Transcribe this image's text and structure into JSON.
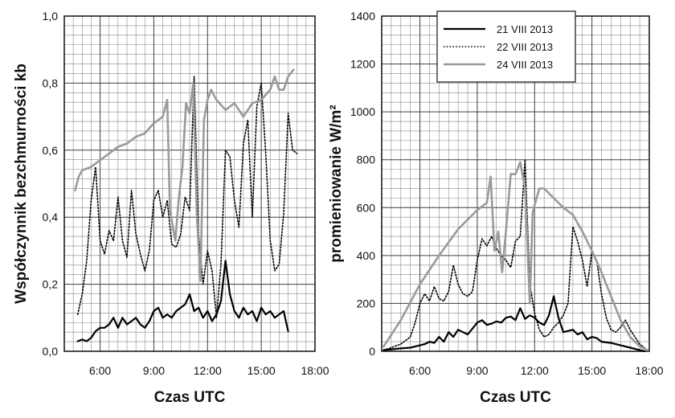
{
  "chart_data": [
    {
      "type": "line",
      "xlabel": "Czas UTC",
      "ylabel": "Współczynnik bezchmurności kb",
      "xlim": [
        4.0,
        18.0
      ],
      "ylim": [
        0.0,
        1.0
      ],
      "x_ticks": [
        6,
        9,
        12,
        15,
        18
      ],
      "x_tick_labels": [
        "6:00",
        "9:00",
        "12:00",
        "15:00",
        "18:00"
      ],
      "y_ticks": [
        0.0,
        0.2,
        0.4,
        0.6,
        0.8,
        1.0
      ],
      "y_tick_labels": [
        "0,0",
        "0,2",
        "0,4",
        "0,6",
        "0,8",
        "1,0"
      ],
      "grid": true,
      "series": [
        {
          "name": "21 VIII 2013",
          "color": "#000000",
          "style": "solid",
          "x": [
            4.75,
            5.0,
            5.25,
            5.5,
            5.75,
            6.0,
            6.25,
            6.5,
            6.75,
            7.0,
            7.25,
            7.5,
            7.75,
            8.0,
            8.25,
            8.5,
            8.75,
            9.0,
            9.25,
            9.5,
            9.75,
            10.0,
            10.25,
            10.5,
            10.75,
            11.0,
            11.25,
            11.5,
            11.75,
            12.0,
            12.25,
            12.5,
            12.75,
            13.0,
            13.25,
            13.5,
            13.75,
            14.0,
            14.25,
            14.5,
            14.75,
            15.0,
            15.25,
            15.5,
            15.75,
            16.0,
            16.25,
            16.5
          ],
          "values": [
            0.03,
            0.035,
            0.03,
            0.04,
            0.06,
            0.07,
            0.07,
            0.08,
            0.1,
            0.07,
            0.1,
            0.08,
            0.09,
            0.1,
            0.08,
            0.07,
            0.09,
            0.12,
            0.13,
            0.1,
            0.11,
            0.1,
            0.12,
            0.13,
            0.14,
            0.17,
            0.12,
            0.13,
            0.1,
            0.12,
            0.09,
            0.11,
            0.15,
            0.27,
            0.17,
            0.12,
            0.1,
            0.13,
            0.11,
            0.12,
            0.09,
            0.13,
            0.11,
            0.12,
            0.1,
            0.11,
            0.12,
            0.06
          ]
        },
        {
          "name": "22 VIII 2013",
          "color": "#000000",
          "style": "dotted",
          "x": [
            4.75,
            5.0,
            5.25,
            5.5,
            5.75,
            6.0,
            6.25,
            6.5,
            6.75,
            7.0,
            7.25,
            7.5,
            7.75,
            8.0,
            8.25,
            8.5,
            8.75,
            9.0,
            9.25,
            9.5,
            9.75,
            10.0,
            10.25,
            10.5,
            10.75,
            11.0,
            11.25,
            11.5,
            11.75,
            12.0,
            12.25,
            12.5,
            12.75,
            13.0,
            13.25,
            13.5,
            13.75,
            14.0,
            14.25,
            14.5,
            14.75,
            15.0,
            15.25,
            15.5,
            15.75,
            16.0,
            16.25,
            16.5,
            16.75,
            17.0
          ],
          "values": [
            0.11,
            0.17,
            0.27,
            0.45,
            0.55,
            0.33,
            0.29,
            0.36,
            0.33,
            0.46,
            0.33,
            0.28,
            0.48,
            0.35,
            0.29,
            0.24,
            0.3,
            0.45,
            0.48,
            0.4,
            0.45,
            0.32,
            0.31,
            0.35,
            0.46,
            0.42,
            0.82,
            0.35,
            0.2,
            0.3,
            0.24,
            0.1,
            0.26,
            0.6,
            0.58,
            0.45,
            0.37,
            0.62,
            0.69,
            0.4,
            0.73,
            0.8,
            0.59,
            0.33,
            0.24,
            0.26,
            0.41,
            0.71,
            0.6,
            0.59
          ]
        },
        {
          "name": "24 VIII 2013",
          "color": "#9a9a9a",
          "style": "solid",
          "x": [
            4.6,
            4.8,
            5.0,
            5.5,
            6.0,
            6.5,
            7.0,
            7.5,
            8.0,
            8.5,
            9.0,
            9.5,
            9.75,
            9.9,
            10.2,
            10.4,
            10.6,
            10.8,
            11.0,
            11.2,
            11.4,
            11.6,
            11.8,
            12.0,
            12.2,
            12.5,
            13.0,
            13.5,
            14.0,
            14.5,
            15.0,
            15.5,
            15.75,
            16.0,
            16.25,
            16.5,
            16.8
          ],
          "values": [
            0.48,
            0.52,
            0.54,
            0.55,
            0.57,
            0.59,
            0.61,
            0.62,
            0.64,
            0.65,
            0.68,
            0.7,
            0.75,
            0.42,
            0.33,
            0.46,
            0.55,
            0.74,
            0.71,
            0.8,
            0.41,
            0.21,
            0.69,
            0.75,
            0.78,
            0.75,
            0.72,
            0.74,
            0.7,
            0.74,
            0.75,
            0.78,
            0.82,
            0.78,
            0.78,
            0.82,
            0.84
          ]
        }
      ]
    },
    {
      "type": "line",
      "xlabel": "Czas UTC",
      "ylabel": "promieniowanie W/m²",
      "xlim": [
        4.0,
        18.0
      ],
      "ylim": [
        0,
        1400
      ],
      "x_ticks": [
        6,
        9,
        12,
        15,
        18
      ],
      "x_tick_labels": [
        "6:00",
        "9:00",
        "12:00",
        "15:00",
        "18:00"
      ],
      "y_ticks": [
        0,
        200,
        400,
        600,
        800,
        1000,
        1200,
        1400
      ],
      "y_tick_labels": [
        "0",
        "200",
        "400",
        "600",
        "800",
        "1000",
        "1200",
        "1400"
      ],
      "grid": true,
      "legend": {
        "position": "top-right",
        "entries": [
          "21 VIII 2013",
          "22 VIII 2013",
          "24 VIII 2013"
        ]
      },
      "series": [
        {
          "name": "21 VIII 2013",
          "color": "#000000",
          "style": "solid",
          "x": [
            4.1,
            4.5,
            5.0,
            5.5,
            6.0,
            6.25,
            6.5,
            6.75,
            7.0,
            7.25,
            7.5,
            7.75,
            8.0,
            8.25,
            8.5,
            8.75,
            9.0,
            9.25,
            9.5,
            9.75,
            10.0,
            10.25,
            10.5,
            10.75,
            11.0,
            11.25,
            11.5,
            11.75,
            12.0,
            12.25,
            12.5,
            12.75,
            13.0,
            13.25,
            13.5,
            13.75,
            14.0,
            14.25,
            14.5,
            14.75,
            15.0,
            15.25,
            15.5,
            16.0,
            16.5,
            17.0,
            17.5,
            17.75
          ],
          "values": [
            5,
            8,
            12,
            15,
            25,
            30,
            40,
            35,
            60,
            40,
            80,
            60,
            90,
            80,
            70,
            95,
            120,
            130,
            110,
            115,
            125,
            120,
            140,
            145,
            130,
            180,
            135,
            150,
            140,
            120,
            110,
            150,
            230,
            140,
            80,
            85,
            90,
            70,
            80,
            50,
            60,
            55,
            40,
            35,
            25,
            15,
            5,
            0
          ]
        },
        {
          "name": "22 VIII 2013",
          "color": "#000000",
          "style": "dotted",
          "x": [
            4.1,
            4.5,
            5.0,
            5.5,
            5.75,
            6.0,
            6.25,
            6.5,
            6.75,
            7.0,
            7.25,
            7.5,
            7.75,
            8.0,
            8.25,
            8.5,
            8.75,
            9.0,
            9.25,
            9.5,
            9.75,
            10.0,
            10.25,
            10.5,
            10.75,
            11.0,
            11.25,
            11.5,
            11.75,
            12.0,
            12.25,
            12.5,
            12.75,
            13.0,
            13.25,
            13.5,
            13.75,
            14.0,
            14.25,
            14.5,
            14.75,
            15.0,
            15.25,
            15.5,
            15.75,
            16.0,
            16.25,
            16.5,
            16.75,
            17.0,
            17.5,
            17.9
          ],
          "values": [
            5,
            15,
            30,
            60,
            120,
            200,
            240,
            210,
            270,
            220,
            210,
            250,
            360,
            280,
            240,
            230,
            250,
            380,
            470,
            440,
            480,
            430,
            400,
            380,
            350,
            460,
            480,
            800,
            280,
            160,
            90,
            60,
            70,
            100,
            120,
            150,
            200,
            520,
            460,
            380,
            270,
            420,
            380,
            240,
            140,
            90,
            80,
            100,
            130,
            90,
            30,
            5
          ]
        },
        {
          "name": "24 VIII 2013",
          "color": "#9a9a9a",
          "style": "solid",
          "x": [
            4.1,
            5.0,
            6.0,
            7.0,
            8.0,
            9.0,
            9.5,
            9.7,
            9.9,
            10.1,
            10.3,
            10.5,
            10.75,
            11.0,
            11.25,
            11.5,
            11.75,
            11.9,
            12.0,
            12.25,
            12.5,
            13.0,
            13.5,
            14.0,
            14.5,
            15.0,
            15.5,
            16.0,
            16.5,
            17.0,
            17.5,
            17.9
          ],
          "values": [
            20,
            130,
            280,
            400,
            510,
            590,
            620,
            730,
            420,
            500,
            330,
            500,
            740,
            740,
            790,
            680,
            200,
            580,
            610,
            680,
            680,
            640,
            600,
            570,
            500,
            420,
            330,
            230,
            130,
            60,
            20,
            5
          ]
        }
      ]
    }
  ]
}
